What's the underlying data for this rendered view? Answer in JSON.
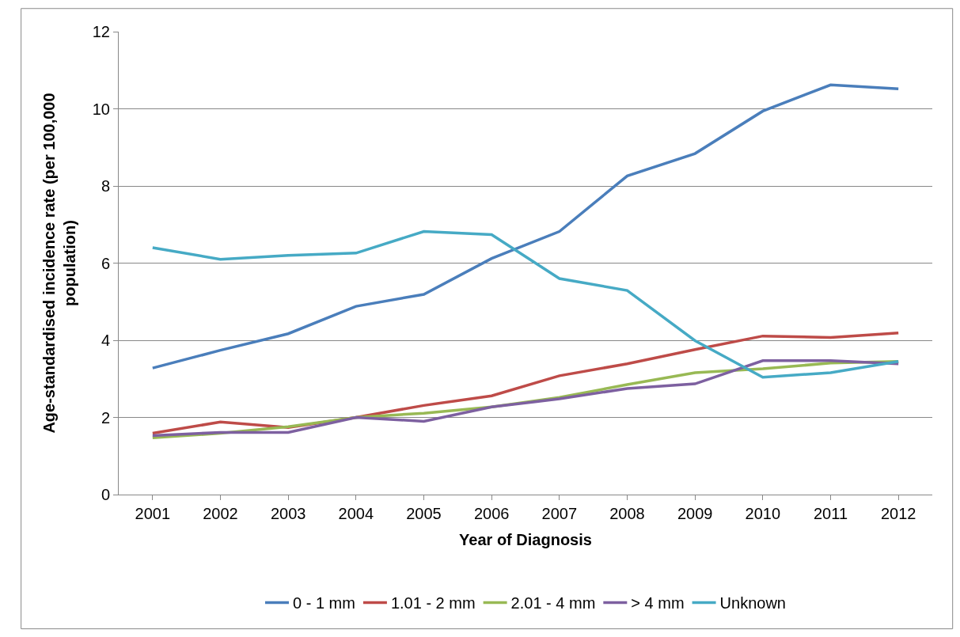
{
  "chart_data": {
    "type": "line",
    "xlabel": "Year of Diagnosis",
    "ylabel": "Age-standardised incidence rate (per 100,000 population)",
    "categories": [
      "2001",
      "2002",
      "2003",
      "2004",
      "2005",
      "2006",
      "2007",
      "2008",
      "2009",
      "2010",
      "2011",
      "2012"
    ],
    "series": [
      {
        "name": "0 - 1 mm",
        "color": "#4a7ebb",
        "values": [
          3.28,
          3.74,
          4.17,
          4.88,
          5.19,
          6.12,
          6.82,
          8.26,
          8.84,
          9.94,
          10.62,
          10.52
        ]
      },
      {
        "name": "1.01 - 2 mm",
        "color": "#be4b48",
        "values": [
          1.59,
          1.88,
          1.74,
          2.0,
          2.31,
          2.56,
          3.08,
          3.39,
          3.76,
          4.11,
          4.07,
          4.19
        ]
      },
      {
        "name": "2.01 - 4 mm",
        "color": "#98b954",
        "values": [
          1.47,
          1.59,
          1.76,
          2.0,
          2.11,
          2.27,
          2.52,
          2.85,
          3.16,
          3.26,
          3.41,
          3.45
        ]
      },
      {
        "name": "> 4 mm",
        "color": "#7d60a0",
        "values": [
          1.53,
          1.61,
          1.61,
          2.0,
          1.9,
          2.27,
          2.48,
          2.75,
          2.87,
          3.47,
          3.47,
          3.39
        ]
      },
      {
        "name": "Unknown",
        "color": "#46aac5",
        "values": [
          6.4,
          6.1,
          6.2,
          6.26,
          6.82,
          6.74,
          5.6,
          5.29,
          3.99,
          3.04,
          3.16,
          3.45
        ]
      }
    ],
    "ylim": [
      0,
      12
    ],
    "yticks": [
      0,
      2,
      4,
      6,
      8,
      10,
      12
    ],
    "grid": "y",
    "legend": "bottom",
    "marker": "none",
    "line_style": "solid"
  }
}
